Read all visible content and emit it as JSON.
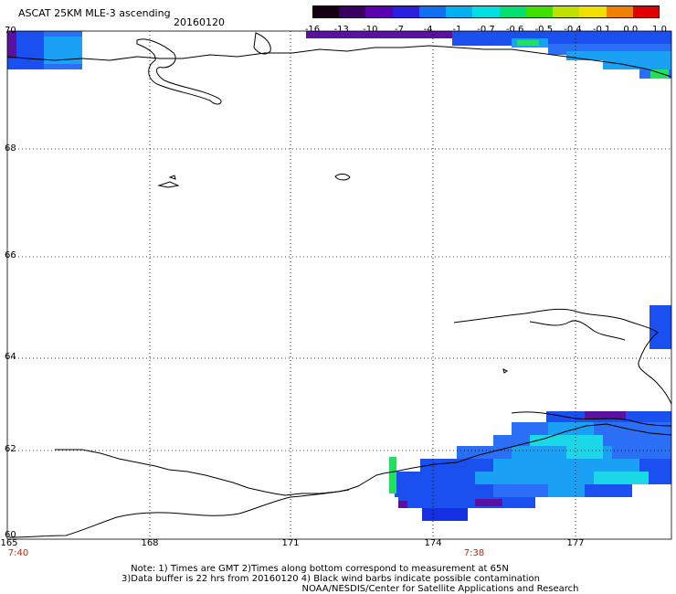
{
  "header": {
    "title": "ASCAT 25KM MLE-3 ascending",
    "date": "20160120"
  },
  "colorbar": {
    "labels": [
      "-16",
      "-13",
      "-10",
      "-7",
      "-4",
      "-1",
      "-0.7",
      "-0.6",
      "-0.5",
      "-0.4",
      "-0.1",
      "0.0",
      "1.0"
    ],
    "colors": [
      "#140010",
      "#3a0060",
      "#5a00b0",
      "#2a20e0",
      "#1070f0",
      "#00b0f0",
      "#00e0e0",
      "#00e070",
      "#40e000",
      "#c0e000",
      "#f0e000",
      "#f08000",
      "#e00000"
    ]
  },
  "map": {
    "lat_labels": [
      "70",
      "68",
      "66",
      "64",
      "62",
      "60"
    ],
    "lon_labels": [
      "165",
      "168",
      "171",
      "174",
      "177"
    ],
    "time_labels": [
      "7:40",
      "7:38"
    ],
    "swath_colors": {
      "blue": "#1a4ff0",
      "mid_blue": "#2a6ff5",
      "light_blue": "#1aa0f5",
      "cyan": "#1ad8e8",
      "green": "#20e060",
      "purple": "#5a10a0",
      "deep_blue": "#1530e0"
    }
  },
  "notes": {
    "line1": "Note: 1) Times are GMT 2)Times along bottom correspond to measurement at 65N",
    "line2": "3)Data buffer is 22 hrs from 20160120 4) Black wind barbs indicate possible contamination",
    "line3": "NOAA/NESDIS/Center for Satellite Applications and Research"
  }
}
